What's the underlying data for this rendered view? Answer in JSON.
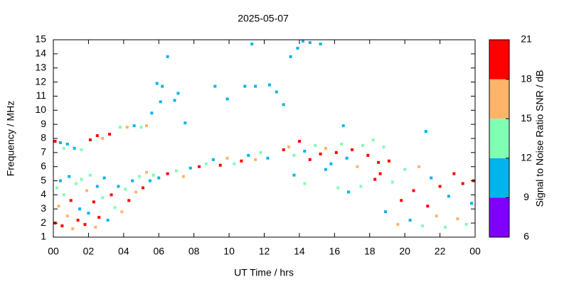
{
  "chart_data": {
    "type": "scatter",
    "title": "2025-05-07",
    "x_label": "UT Time / hrs",
    "y_label": "Frequency / MHz",
    "xlim": [
      0,
      24
    ],
    "ylim": [
      1,
      15
    ],
    "xticks": [
      {
        "value": 0,
        "label": "00"
      },
      {
        "value": 2,
        "label": "02"
      },
      {
        "value": 4,
        "label": "04"
      },
      {
        "value": 6,
        "label": "06"
      },
      {
        "value": 8,
        "label": "08"
      },
      10,
      12,
      14,
      16,
      18,
      20,
      22,
      {
        "value": 24,
        "label": "00"
      }
    ],
    "yticks": [
      1,
      2,
      3,
      4,
      5,
      6,
      7,
      8,
      9,
      10,
      11,
      12,
      13,
      14,
      15
    ],
    "x": [
      0.1,
      0.2,
      0.3,
      0.4,
      0.5,
      0.6,
      0.8,
      0.9,
      1.0,
      1.1,
      1.3,
      1.4,
      1.5,
      1.6,
      1.8,
      1.9,
      2.0,
      2.1,
      2.3,
      2.4,
      2.5,
      2.6,
      2.8,
      2.9,
      0.1,
      0.4,
      0.6,
      0.8,
      1.2,
      1.6,
      2.1,
      2.5,
      2.8,
      3.1,
      3.3,
      3.5,
      3.7,
      3.9,
      4.1,
      4.3,
      4.5,
      4.7,
      4.9,
      5.1,
      5.3,
      5.5,
      5.7,
      3.2,
      3.8,
      4.2,
      4.6,
      5.0,
      5.3,
      6.0,
      6.5,
      7.0,
      7.4,
      7.8,
      8.3,
      8.7,
      9.1,
      9.5,
      9.9,
      10.3,
      10.7,
      11.1,
      11.5,
      11.8,
      12.2,
      5.6,
      5.9,
      6.1,
      6.2,
      6.5,
      6.9,
      7.1,
      7.5,
      9.2,
      9.9,
      10.9,
      11.5,
      12.3,
      12.7,
      13.1,
      13.5,
      13.9,
      14.2,
      14.6,
      15.2,
      11.3,
      16.5,
      13.1,
      13.4,
      13.7,
      14.0,
      14.3,
      14.6,
      14.9,
      15.2,
      15.5,
      15.8,
      16.1,
      16.4,
      16.7,
      17.0,
      17.3,
      17.6,
      17.9,
      18.2,
      18.5,
      18.8,
      13.7,
      14.3,
      15.5,
      16.2,
      16.8,
      17.5,
      18.3,
      18.6,
      18.9,
      19.1,
      19.3,
      19.6,
      19.8,
      20.0,
      20.3,
      20.5,
      20.8,
      21.0,
      21.3,
      21.5,
      21.8,
      22.0,
      22.3,
      22.5,
      22.8,
      23.0,
      23.3,
      23.5,
      23.8,
      23.9,
      21.2
    ],
    "y": [
      2.0,
      4.5,
      3.2,
      5.0,
      1.8,
      4.0,
      2.5,
      5.3,
      3.6,
      1.6,
      4.8,
      2.2,
      3.0,
      5.1,
      1.9,
      4.3,
      2.7,
      5.4,
      3.5,
      1.7,
      4.6,
      2.4,
      3.8,
      5.2,
      7.8,
      7.7,
      7.3,
      7.6,
      7.3,
      7.2,
      7.9,
      8.2,
      8.0,
      2.2,
      4.0,
      3.1,
      4.6,
      2.8,
      4.4,
      3.6,
      5.0,
      4.2,
      5.3,
      4.5,
      5.6,
      5.0,
      5.4,
      8.3,
      8.8,
      8.8,
      8.9,
      8.8,
      8.9,
      5.2,
      5.5,
      5.7,
      5.3,
      5.9,
      6.0,
      6.2,
      6.5,
      6.1,
      6.6,
      6.2,
      6.4,
      6.8,
      6.5,
      7.0,
      6.6,
      9.8,
      11.9,
      10.6,
      11.7,
      13.8,
      10.7,
      11.2,
      9.1,
      11.7,
      10.8,
      11.7,
      11.7,
      11.8,
      11.3,
      10.4,
      13.8,
      14.4,
      14.9,
      14.8,
      14.7,
      14.7,
      8.9,
      7.2,
      7.4,
      6.8,
      7.8,
      7.1,
      6.5,
      7.5,
      6.9,
      7.3,
      6.2,
      7.0,
      7.6,
      6.6,
      7.2,
      6.0,
      7.5,
      6.8,
      7.9,
      6.3,
      7.4,
      5.4,
      4.8,
      5.8,
      4.5,
      4.2,
      4.6,
      5.1,
      5.5,
      2.8,
      6.4,
      4.9,
      1.9,
      3.6,
      5.8,
      2.2,
      4.3,
      6.0,
      1.8,
      3.2,
      5.2,
      2.5,
      4.6,
      1.7,
      3.9,
      5.5,
      2.3,
      4.8,
      1.9,
      3.4,
      5.0,
      8.5
    ],
    "snr": [
      19,
      13,
      17,
      11,
      19,
      14,
      17,
      10,
      19,
      16,
      13,
      19,
      11,
      14,
      19,
      17,
      10,
      13,
      19,
      16,
      11,
      19,
      14,
      10,
      19,
      10,
      14,
      11,
      10,
      13,
      19,
      19,
      16,
      10,
      19,
      13,
      10,
      16,
      14,
      19,
      11,
      16,
      13,
      19,
      17,
      11,
      13,
      19,
      13,
      16,
      10,
      14,
      16,
      10,
      19,
      13,
      16,
      11,
      19,
      13,
      10,
      19,
      16,
      13,
      19,
      10,
      16,
      13,
      11,
      10,
      10,
      10,
      10,
      10,
      10,
      10,
      10,
      10,
      10,
      10,
      10,
      10,
      10,
      10,
      10,
      10,
      10,
      10,
      10,
      10,
      10,
      19,
      16,
      13,
      19,
      10,
      19,
      13,
      19,
      16,
      10,
      19,
      13,
      11,
      19,
      16,
      13,
      19,
      14,
      19,
      13,
      10,
      13,
      10,
      14,
      10,
      13,
      19,
      19,
      10,
      19,
      14,
      16,
      19,
      13,
      11,
      19,
      16,
      13,
      19,
      10,
      16,
      19,
      13,
      11,
      19,
      16,
      19,
      13,
      10,
      19,
      10
    ],
    "colorbar": {
      "label": "Signal to Noise Ratio SNR / dB",
      "clim": [
        6,
        21
      ],
      "ticks": [
        6,
        9,
        12,
        15,
        18,
        21
      ],
      "colors": [
        "#8000ff",
        "#00b4ec",
        "#80ffb4",
        "#ffb46a",
        "#ff0000"
      ]
    }
  }
}
